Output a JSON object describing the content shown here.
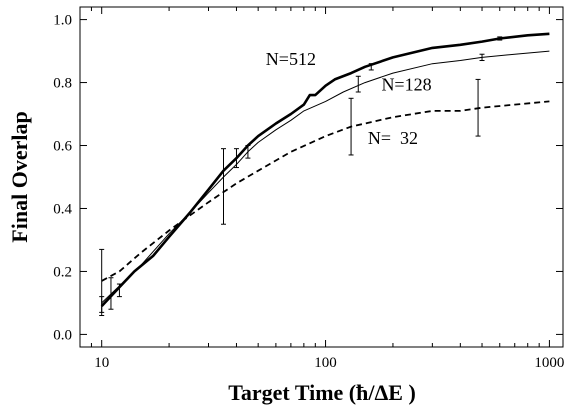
{
  "chart_data": {
    "type": "line",
    "title": "",
    "xlabel": "Target Time (ħ/ΔE )",
    "ylabel": "Final Overlap",
    "xscale": "log",
    "xlim": [
      8,
      1150
    ],
    "ylim": [
      -0.04,
      1.04
    ],
    "grid": false,
    "x_ticks": [
      {
        "value": 10,
        "label": "10"
      },
      {
        "value": 100,
        "label": "100"
      },
      {
        "value": 1000,
        "label": "1000"
      }
    ],
    "y_ticks": [
      {
        "value": 0.0,
        "label": "0.0"
      },
      {
        "value": 0.2,
        "label": "0.2"
      },
      {
        "value": 0.4,
        "label": "0.4"
      },
      {
        "value": 0.6,
        "label": "0.6"
      },
      {
        "value": 0.8,
        "label": "0.8"
      },
      {
        "value": 1.0,
        "label": "1.0"
      }
    ],
    "series": [
      {
        "name": "N=512",
        "style": "thick",
        "x": [
          10,
          12,
          14,
          17,
          20,
          25,
          30,
          35,
          40,
          45,
          50,
          60,
          70,
          80,
          85,
          90,
          100,
          110,
          130,
          150,
          200,
          300,
          400,
          500,
          600,
          800,
          1000
        ],
        "y": [
          0.09,
          0.15,
          0.2,
          0.25,
          0.31,
          0.39,
          0.46,
          0.52,
          0.56,
          0.6,
          0.63,
          0.67,
          0.7,
          0.73,
          0.76,
          0.76,
          0.79,
          0.81,
          0.83,
          0.85,
          0.88,
          0.91,
          0.92,
          0.93,
          0.94,
          0.95,
          0.955
        ],
        "error_bars": [
          {
            "x": 10,
            "low": 0.06,
            "high": 0.12
          },
          {
            "x": 12,
            "low": 0.12,
            "high": 0.16
          },
          {
            "x": 40,
            "low": 0.53,
            "high": 0.59
          },
          {
            "x": 160,
            "low": 0.84,
            "high": 0.86
          },
          {
            "x": 600,
            "low": 0.935,
            "high": 0.945
          }
        ]
      },
      {
        "name": "N=128",
        "style": "thin",
        "x": [
          10,
          15,
          20,
          25,
          30,
          35,
          40,
          45,
          50,
          60,
          70,
          80,
          100,
          120,
          150,
          200,
          300,
          400,
          500,
          700,
          1000
        ],
        "y": [
          0.1,
          0.22,
          0.32,
          0.39,
          0.45,
          0.5,
          0.54,
          0.58,
          0.61,
          0.65,
          0.68,
          0.71,
          0.74,
          0.77,
          0.8,
          0.83,
          0.86,
          0.87,
          0.88,
          0.89,
          0.9
        ],
        "error_bars": [
          {
            "x": 11,
            "low": 0.08,
            "high": 0.18
          },
          {
            "x": 45,
            "low": 0.56,
            "high": 0.6
          },
          {
            "x": 140,
            "low": 0.77,
            "high": 0.82
          },
          {
            "x": 500,
            "low": 0.87,
            "high": 0.89
          }
        ]
      },
      {
        "name": "N=  32",
        "style": "dashed",
        "x": [
          10,
          12,
          15,
          20,
          25,
          30,
          40,
          50,
          70,
          100,
          130,
          150,
          200,
          300,
          400,
          500,
          700,
          1000
        ],
        "y": [
          0.17,
          0.2,
          0.26,
          0.33,
          0.38,
          0.42,
          0.48,
          0.52,
          0.58,
          0.63,
          0.66,
          0.67,
          0.69,
          0.71,
          0.71,
          0.72,
          0.73,
          0.74
        ],
        "error_bars": [
          {
            "x": 10,
            "low": 0.07,
            "high": 0.27
          },
          {
            "x": 35,
            "low": 0.35,
            "high": 0.59
          },
          {
            "x": 130,
            "low": 0.57,
            "high": 0.75
          },
          {
            "x": 480,
            "low": 0.63,
            "high": 0.81
          }
        ]
      }
    ],
    "annotations": [
      {
        "text": "N=512",
        "x": 70,
        "y": 0.855
      },
      {
        "text": "N=128",
        "x": 230,
        "y": 0.775
      },
      {
        "text": "N=  32",
        "x": 200,
        "y": 0.605
      }
    ]
  }
}
